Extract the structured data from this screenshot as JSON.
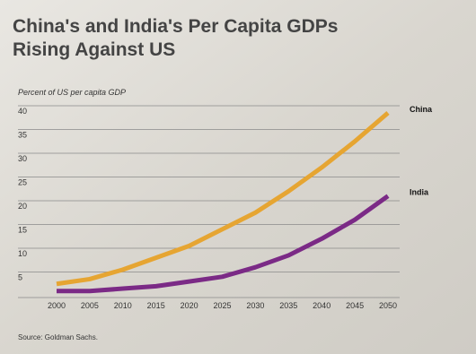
{
  "chart_data": {
    "type": "line",
    "title": "China's and India's Per Capita GDPs Rising Against US",
    "y_label": "Percent of US per capita GDP",
    "source": "Source: Goldman Sachs.",
    "x": [
      2000,
      2005,
      2010,
      2015,
      2020,
      2025,
      2030,
      2035,
      2040,
      2045,
      2050
    ],
    "series": [
      {
        "name": "China",
        "color": "#e6a532",
        "values": [
          2.5,
          3.5,
          5.5,
          8,
          10.5,
          14,
          17.5,
          22,
          27,
          32.5,
          38.5
        ]
      },
      {
        "name": "India",
        "color": "#7b2a86",
        "values": [
          1,
          1,
          1.5,
          2,
          3,
          4,
          6,
          8.5,
          12,
          16,
          21
        ]
      }
    ],
    "xlim": [
      2000,
      2050
    ],
    "xticks": [
      2000,
      2005,
      2010,
      2015,
      2020,
      2025,
      2030,
      2035,
      2040,
      2045,
      2050
    ],
    "ylim": [
      0,
      40
    ],
    "yticks": [
      5,
      10,
      15,
      20,
      25,
      30,
      35,
      40
    ],
    "grid": true
  }
}
